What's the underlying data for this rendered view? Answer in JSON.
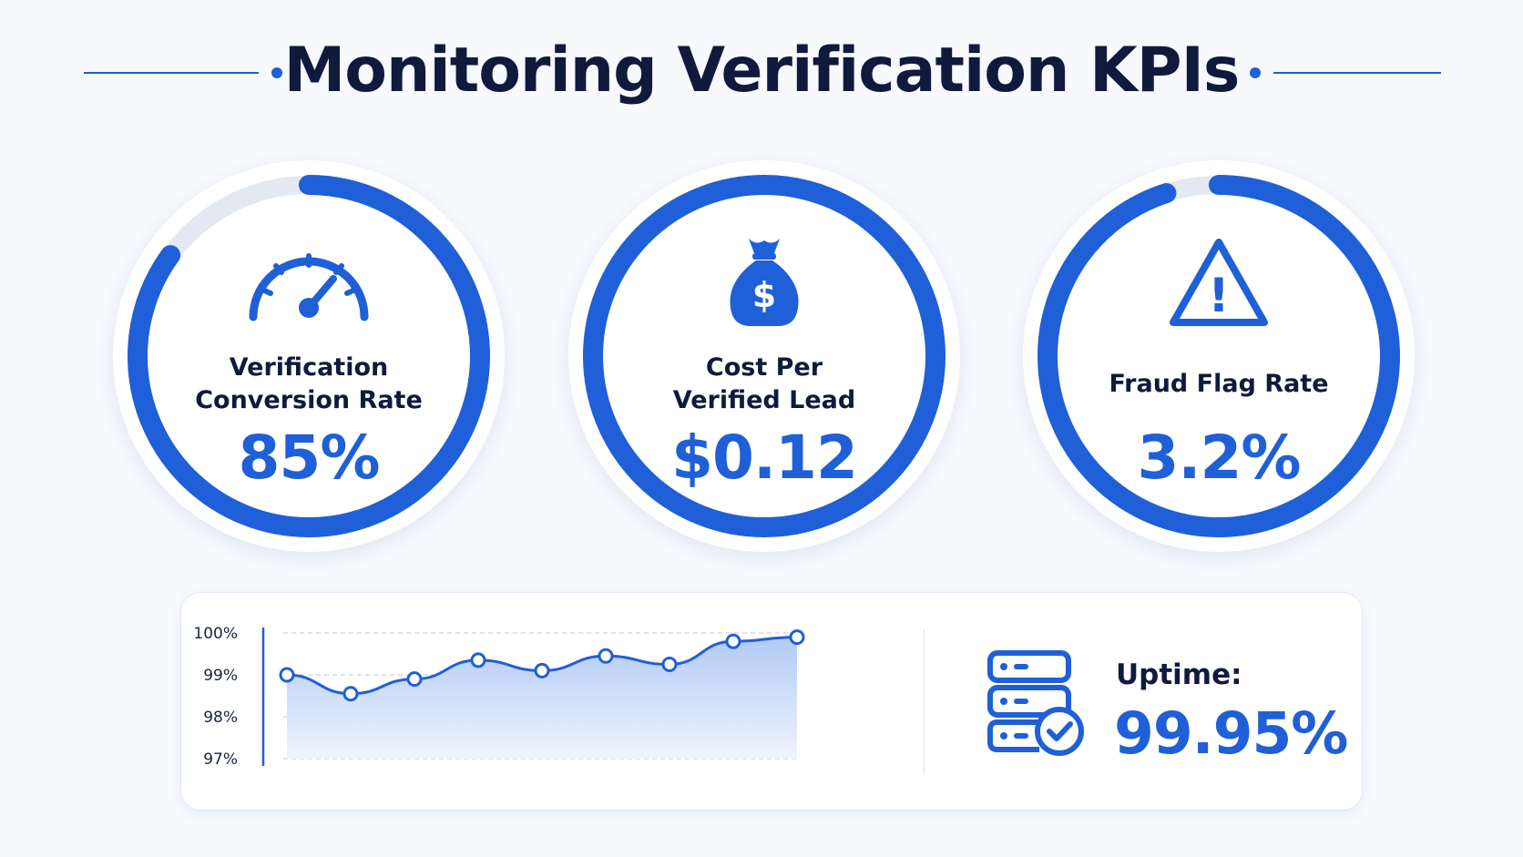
{
  "title": "Monitoring Verification KPIs",
  "colors": {
    "accent": "#1f5fd8",
    "track": "#e3e8f1",
    "text_dark": "#0f1a3d",
    "fill_top": "#a9c4f5",
    "fill_bottom": "#eef3fd"
  },
  "kpis": [
    {
      "icon": "speedometer-icon",
      "label_lines": [
        "Verification",
        "Conversion Rate"
      ],
      "value": "85%",
      "progress": 0.85
    },
    {
      "icon": "money-bag-icon",
      "icon_text": "$",
      "label_lines": [
        "Cost Per",
        "Verified Lead"
      ],
      "value": "$0.12",
      "progress": 1.0
    },
    {
      "icon": "warning-triangle-icon",
      "icon_text": "!",
      "label_lines": [
        "Fraud Flag Rate"
      ],
      "value": "3.2%",
      "progress": 0.95
    }
  ],
  "uptime": {
    "icon": "server-check-icon",
    "label": "Uptime:",
    "value": "99.95%"
  },
  "chart_data": {
    "type": "area",
    "title": "",
    "xlabel": "",
    "ylabel": "",
    "y_ticks": [
      "100%",
      "99%",
      "98%",
      "97%"
    ],
    "ylim": [
      97,
      100
    ],
    "grid": true,
    "x": [
      1,
      2,
      3,
      4,
      5,
      6,
      7,
      8,
      9
    ],
    "series": [
      {
        "values": [
          99.0,
          98.55,
          98.9,
          99.35,
          99.1,
          99.45,
          99.25,
          99.8,
          99.9
        ]
      }
    ]
  }
}
